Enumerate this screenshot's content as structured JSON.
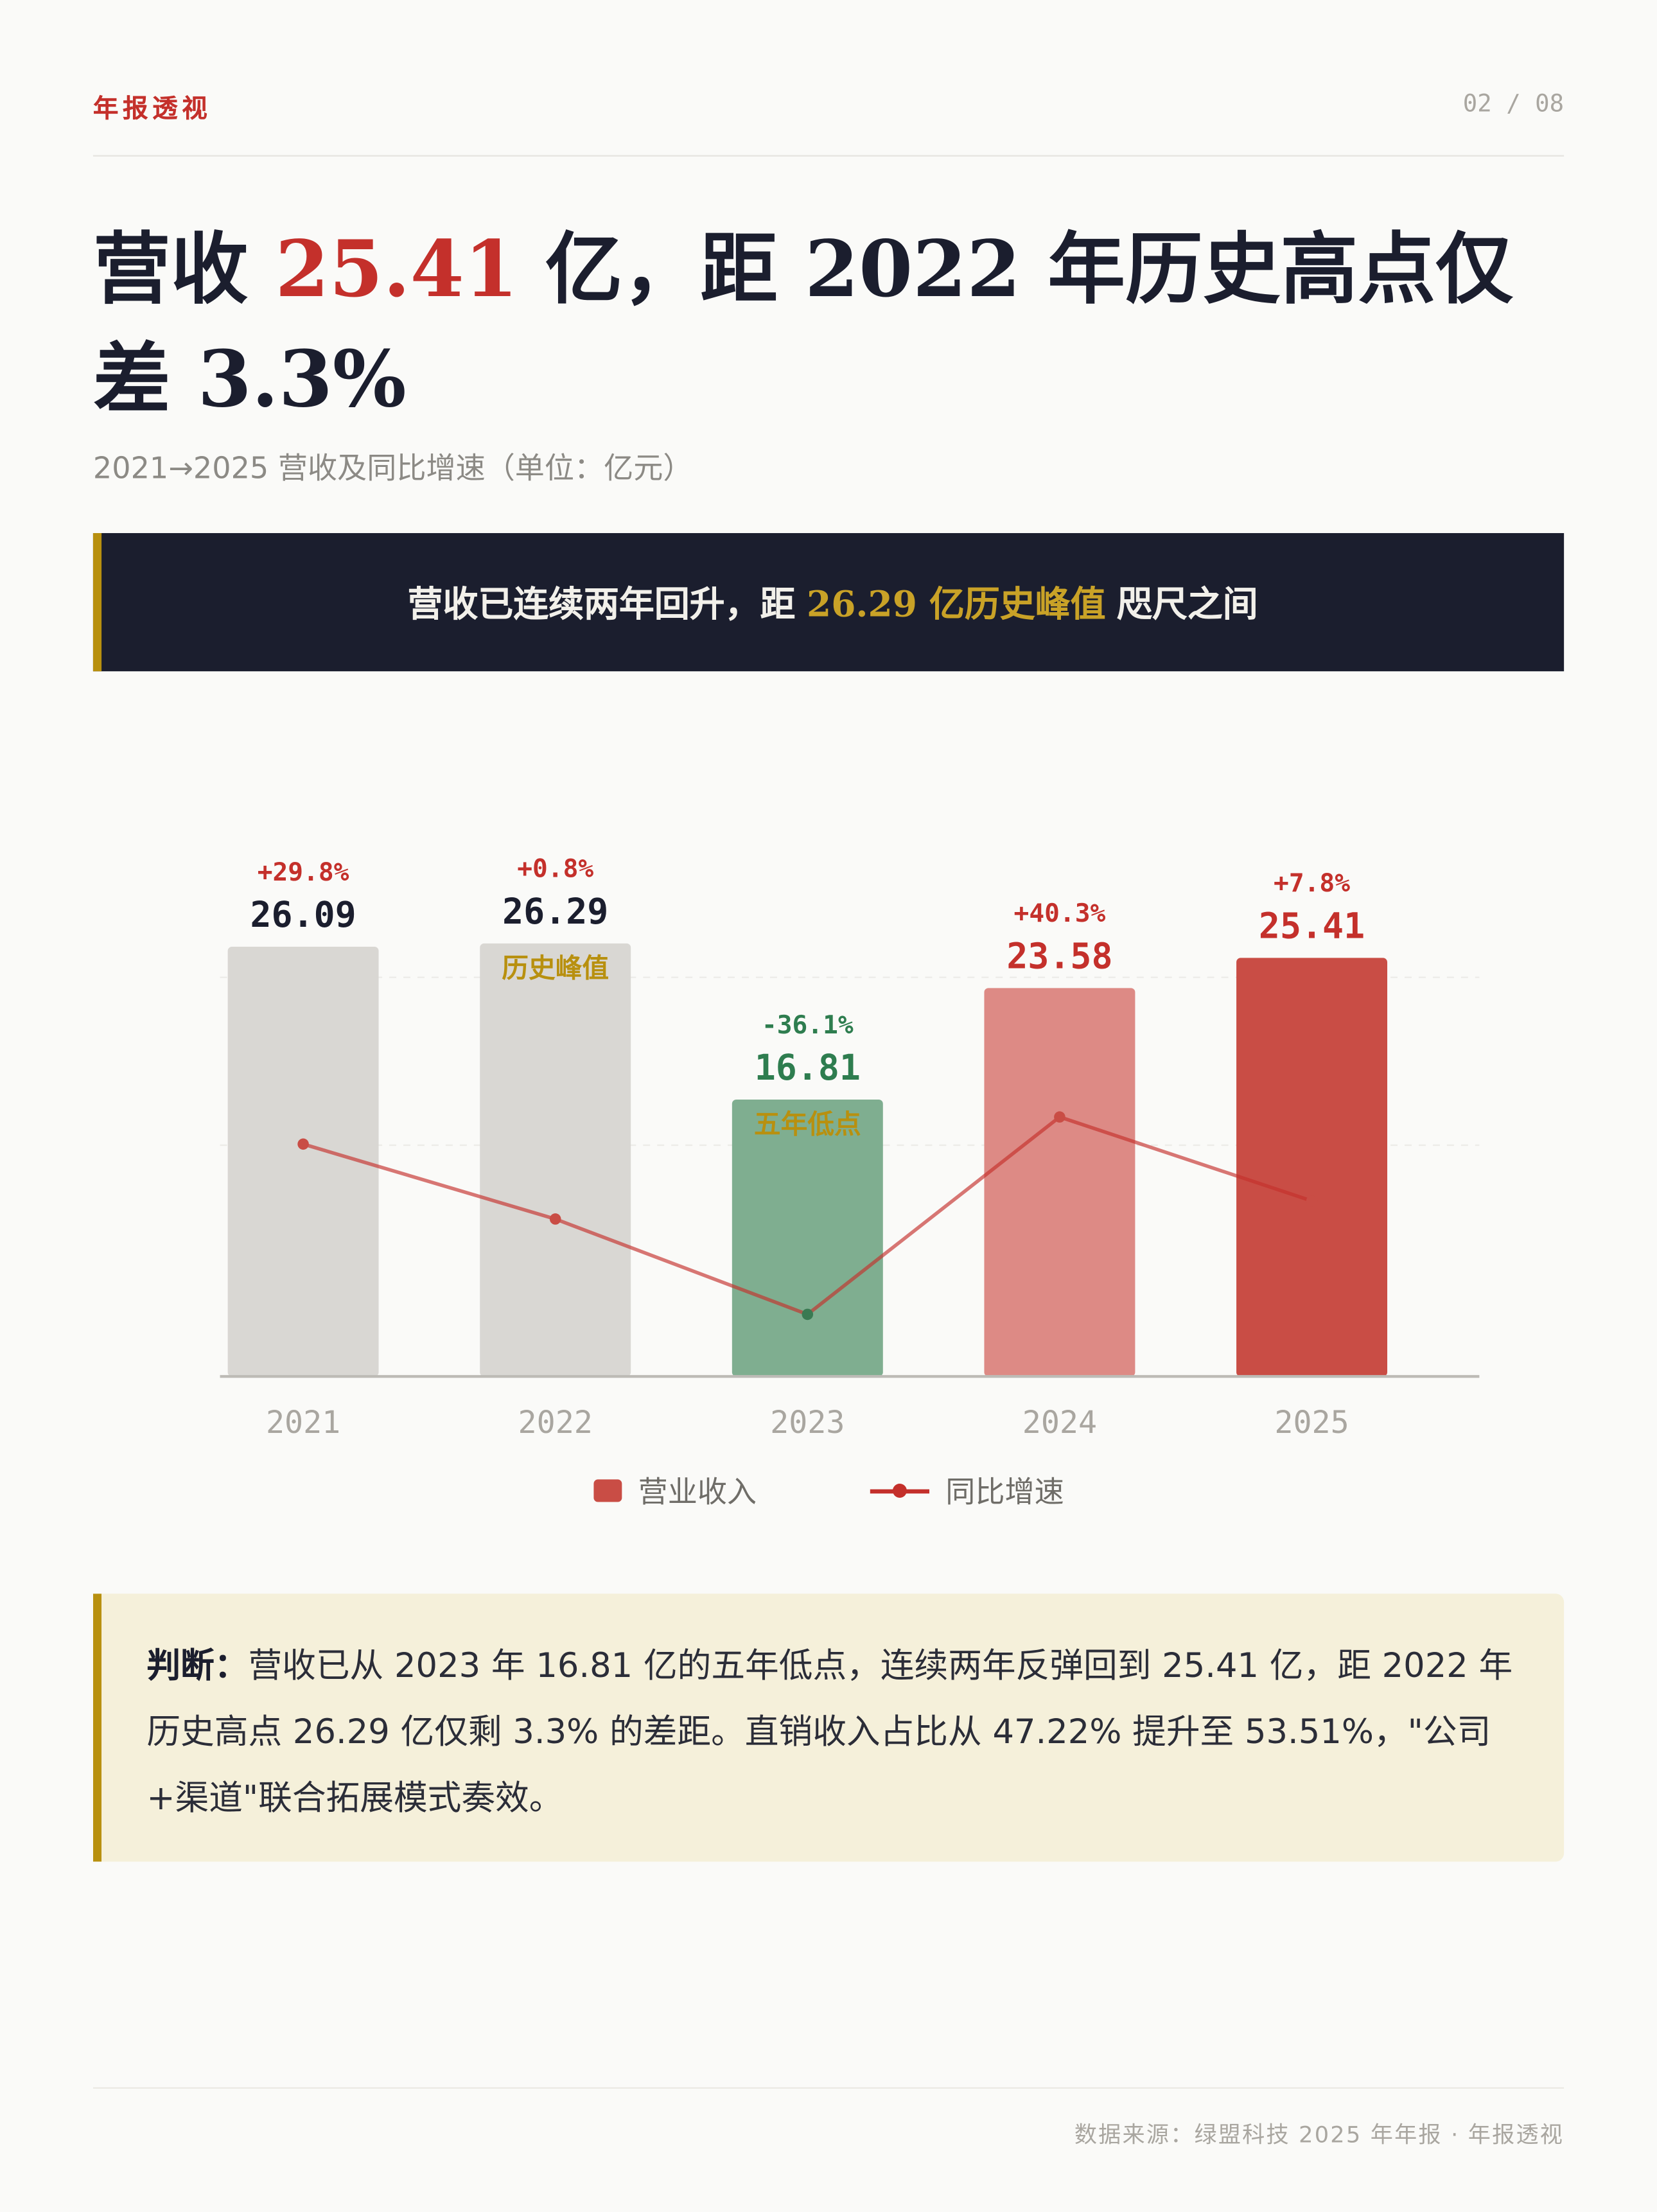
{
  "header": {
    "brand": "年报透视",
    "page": "02 / 08"
  },
  "title": {
    "pre": "营收 ",
    "highlight": "25.41",
    "post": " 亿，距 2022 年历史高点仅差 3.3%"
  },
  "subtitle": "2021→2025 营收及同比增速（单位：亿元）",
  "banner": {
    "pre": "营收已连续两年回升，距",
    "highlight": "26.29 亿历史峰值",
    "post": "咫尺之间"
  },
  "chart_data": {
    "type": "bar",
    "categories": [
      "2021",
      "2022",
      "2023",
      "2024",
      "2025"
    ],
    "series": [
      {
        "name": "营业收入",
        "type": "bar",
        "values": [
          26.09,
          26.29,
          16.81,
          23.58,
          25.41
        ],
        "labels": [
          "26.09",
          "26.29",
          "16.81",
          "23.58",
          "25.41"
        ],
        "colors": [
          "#d9d7d3",
          "#d9d7d3",
          "#7fae90",
          "#dd8a85",
          "#c94d45"
        ]
      },
      {
        "name": "同比增速",
        "type": "line",
        "unit": "%",
        "values": [
          29.8,
          0.8,
          -36.1,
          40.3,
          7.8
        ],
        "labels": [
          "+29.8%",
          "+0.8%",
          "-36.1%",
          "+40.3%",
          "+7.8%"
        ],
        "color": "#c4302b"
      }
    ],
    "annotations": [
      {
        "category": "2022",
        "text": "历史峰值"
      },
      {
        "category": "2023",
        "text": "五年低点"
      }
    ],
    "grid": true,
    "legend": "bottom-center"
  },
  "judgement": {
    "label": "判断：",
    "text": "营收已从 2023 年 16.81 亿的五年低点，连续两年反弹回到 25.41 亿，距 2022 年历史高点 26.29 亿仅剩 3.3% 的差距。直销收入占比从 47.22% 提升至 53.51%，\"公司+渠道\"联合拓展模式奏效。"
  },
  "footer": "数据来源：绿盟科技 2025 年年报 · 年报透视"
}
